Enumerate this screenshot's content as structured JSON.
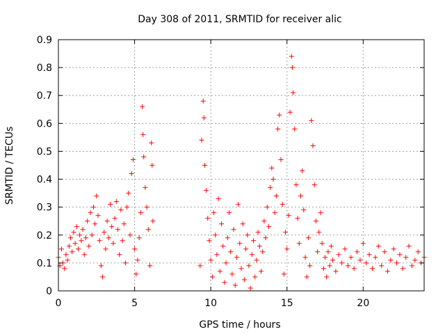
{
  "chart_data": {
    "type": "scatter",
    "title": "Day 308 of 2011, SRMTID for receiver alic",
    "xlabel": "GPS time / hours",
    "ylabel": "SRMTID / TECUs",
    "xlim": [
      0,
      24
    ],
    "ylim": [
      0,
      0.9
    ],
    "xticks": [
      0,
      5,
      10,
      15,
      20
    ],
    "xtick_labels": [
      "0",
      "5",
      "10",
      "15",
      "20"
    ],
    "yticks": [
      0,
      0.1,
      0.2,
      0.3,
      0.4,
      0.5,
      0.6,
      0.7,
      0.8,
      0.9
    ],
    "ytick_labels": [
      "0",
      "0.1",
      "0.2",
      "0.3",
      "0.4",
      "0.5",
      "0.6",
      "0.7",
      "0.8",
      "0.9"
    ],
    "grid": true,
    "marker": "+",
    "color": "#ff0000",
    "series": [
      {
        "name": "SRMTID",
        "points": [
          [
            0.0,
            0.12
          ],
          [
            0.1,
            0.09
          ],
          [
            0.2,
            0.15
          ],
          [
            0.3,
            0.1
          ],
          [
            0.4,
            0.08
          ],
          [
            0.5,
            0.13
          ],
          [
            0.6,
            0.11
          ],
          [
            0.7,
            0.16
          ],
          [
            0.8,
            0.19
          ],
          [
            0.9,
            0.14
          ],
          [
            1.0,
            0.21
          ],
          [
            1.1,
            0.17
          ],
          [
            1.2,
            0.23
          ],
          [
            1.3,
            0.15
          ],
          [
            1.4,
            0.2
          ],
          [
            1.5,
            0.18
          ],
          [
            1.6,
            0.22
          ],
          [
            1.7,
            0.13
          ],
          [
            1.8,
            0.19
          ],
          [
            1.9,
            0.25
          ],
          [
            2.0,
            0.16
          ],
          [
            2.1,
            0.28
          ],
          [
            2.2,
            0.2
          ],
          [
            2.3,
            0.3
          ],
          [
            2.4,
            0.24
          ],
          [
            2.5,
            0.34
          ],
          [
            2.6,
            0.27
          ],
          [
            2.7,
            0.18
          ],
          [
            2.8,
            0.09
          ],
          [
            2.9,
            0.05
          ],
          [
            3.0,
            0.21
          ],
          [
            3.1,
            0.15
          ],
          [
            3.2,
            0.25
          ],
          [
            3.3,
            0.19
          ],
          [
            3.4,
            0.31
          ],
          [
            3.5,
            0.23
          ],
          [
            3.6,
            0.17
          ],
          [
            3.7,
            0.26
          ],
          [
            3.8,
            0.32
          ],
          [
            3.9,
            0.22
          ],
          [
            4.0,
            0.13
          ],
          [
            4.1,
            0.29
          ],
          [
            4.2,
            0.18
          ],
          [
            4.3,
            0.24
          ],
          [
            4.4,
            0.1
          ],
          [
            4.5,
            0.3
          ],
          [
            4.6,
            0.35
          ],
          [
            4.7,
            0.2
          ],
          [
            4.8,
            0.42
          ],
          [
            4.9,
            0.47
          ],
          [
            5.0,
            0.15
          ],
          [
            5.1,
            0.06
          ],
          [
            5.2,
            0.11
          ],
          [
            5.3,
            0.19
          ],
          [
            5.4,
            0.28
          ],
          [
            5.5,
            0.66
          ],
          [
            5.55,
            0.56
          ],
          [
            5.6,
            0.48
          ],
          [
            5.7,
            0.37
          ],
          [
            5.8,
            0.3
          ],
          [
            5.9,
            0.22
          ],
          [
            6.0,
            0.09
          ],
          [
            6.1,
            0.53
          ],
          [
            6.15,
            0.45
          ],
          [
            6.2,
            0.25
          ],
          [
            9.3,
            0.09
          ],
          [
            9.4,
            0.54
          ],
          [
            9.5,
            0.68
          ],
          [
            9.55,
            0.62
          ],
          [
            9.6,
            0.45
          ],
          [
            9.7,
            0.36
          ],
          [
            9.8,
            0.26
          ],
          [
            9.9,
            0.18
          ],
          [
            10.0,
            0.11
          ],
          [
            10.1,
            0.05
          ],
          [
            10.2,
            0.28
          ],
          [
            10.3,
            0.2
          ],
          [
            10.4,
            0.13
          ],
          [
            10.5,
            0.33
          ],
          [
            10.6,
            0.07
          ],
          [
            10.7,
            0.24
          ],
          [
            10.8,
            0.16
          ],
          [
            10.9,
            0.03
          ],
          [
            11.0,
            0.1
          ],
          [
            11.1,
            0.19
          ],
          [
            11.2,
            0.28
          ],
          [
            11.3,
            0.14
          ],
          [
            11.4,
            0.06
          ],
          [
            11.5,
            0.22
          ],
          [
            11.6,
            0.02
          ],
          [
            11.7,
            0.12
          ],
          [
            11.8,
            0.31
          ],
          [
            11.9,
            0.17
          ],
          [
            12.0,
            0.08
          ],
          [
            12.1,
            0.24
          ],
          [
            12.2,
            0.04
          ],
          [
            12.3,
            0.15
          ],
          [
            12.4,
            0.2
          ],
          [
            12.5,
            0.09
          ],
          [
            12.6,
            0.01
          ],
          [
            12.7,
            0.13
          ],
          [
            12.8,
            0.18
          ],
          [
            12.9,
            0.05
          ],
          [
            13.0,
            0.11
          ],
          [
            13.1,
            0.21
          ],
          [
            13.2,
            0.16
          ],
          [
            13.3,
            0.07
          ],
          [
            13.4,
            0.14
          ],
          [
            13.5,
            0.25
          ],
          [
            13.6,
            0.19
          ],
          [
            13.7,
            0.3
          ],
          [
            13.8,
            0.23
          ],
          [
            13.9,
            0.37
          ],
          [
            14.0,
            0.44
          ],
          [
            14.1,
            0.4
          ],
          [
            14.2,
            0.28
          ],
          [
            14.3,
            0.34
          ],
          [
            14.4,
            0.58
          ],
          [
            14.5,
            0.63
          ],
          [
            14.6,
            0.47
          ],
          [
            14.7,
            0.31
          ],
          [
            14.8,
            0.06
          ],
          [
            14.9,
            0.21
          ],
          [
            15.0,
            0.15
          ],
          [
            15.1,
            0.27
          ],
          [
            15.2,
            0.64
          ],
          [
            15.3,
            0.84
          ],
          [
            15.35,
            0.8
          ],
          [
            15.4,
            0.71
          ],
          [
            15.5,
            0.58
          ],
          [
            15.6,
            0.38
          ],
          [
            15.7,
            0.26
          ],
          [
            15.8,
            0.17
          ],
          [
            15.9,
            0.34
          ],
          [
            16.0,
            0.43
          ],
          [
            16.1,
            0.29
          ],
          [
            16.2,
            0.12
          ],
          [
            16.3,
            0.05
          ],
          [
            16.4,
            0.19
          ],
          [
            16.5,
            0.09
          ],
          [
            16.6,
            0.61
          ],
          [
            16.7,
            0.52
          ],
          [
            16.8,
            0.38
          ],
          [
            16.9,
            0.25
          ],
          [
            17.0,
            0.14
          ],
          [
            17.1,
            0.21
          ],
          [
            17.2,
            0.28
          ],
          [
            17.3,
            0.17
          ],
          [
            17.4,
            0.08
          ],
          [
            17.5,
            0.12
          ],
          [
            17.6,
            0.05
          ],
          [
            17.7,
            0.14
          ],
          [
            17.8,
            0.09
          ],
          [
            17.9,
            0.16
          ],
          [
            18.0,
            0.11
          ],
          [
            18.2,
            0.07
          ],
          [
            18.4,
            0.13
          ],
          [
            18.6,
            0.1
          ],
          [
            18.8,
            0.15
          ],
          [
            19.0,
            0.09
          ],
          [
            19.2,
            0.12
          ],
          [
            19.4,
            0.08
          ],
          [
            19.6,
            0.14
          ],
          [
            19.8,
            0.11
          ],
          [
            20.0,
            0.17
          ],
          [
            20.2,
            0.1
          ],
          [
            20.4,
            0.13
          ],
          [
            20.6,
            0.08
          ],
          [
            20.8,
            0.12
          ],
          [
            21.0,
            0.16
          ],
          [
            21.2,
            0.09
          ],
          [
            21.4,
            0.14
          ],
          [
            21.6,
            0.07
          ],
          [
            21.8,
            0.11
          ],
          [
            22.0,
            0.15
          ],
          [
            22.2,
            0.1
          ],
          [
            22.4,
            0.13
          ],
          [
            22.6,
            0.08
          ],
          [
            22.8,
            0.12
          ],
          [
            23.0,
            0.16
          ],
          [
            23.2,
            0.09
          ],
          [
            23.4,
            0.11
          ],
          [
            23.6,
            0.14
          ],
          [
            23.8,
            0.1
          ],
          [
            24.0,
            0.12
          ]
        ]
      }
    ]
  }
}
